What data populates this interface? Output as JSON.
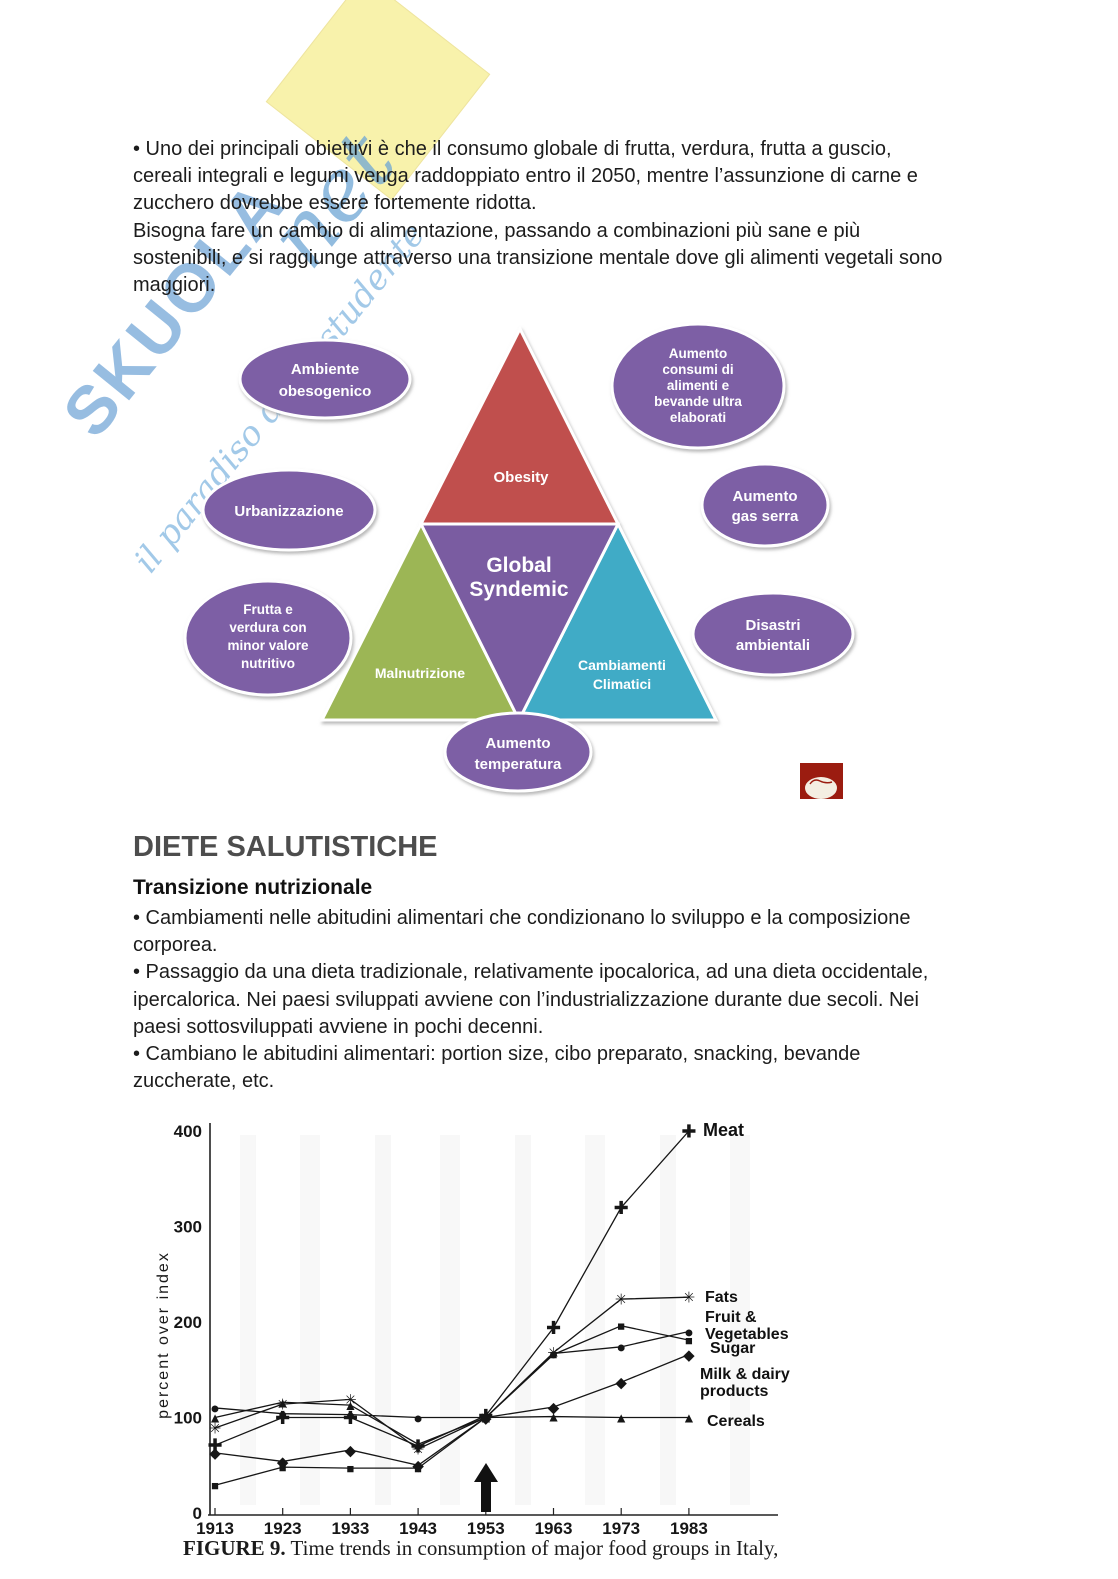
{
  "page": {
    "intro_lines": [
      "• Uno dei principali obiettivi è che il consumo globale di frutta, verdura, frutta a guscio,",
      "cereali integrali e legumi venga raddoppiato entro il 2050, mentre l’assunzione di carne e",
      "zucchero dovrebbe essere fortemente ridotta.",
      "Bisogna fare un cambio di alimentazione, passando a combinazioni più sane e più",
      "sostenibili, e si raggiunge attraverso una transizione mentale dove gli alimenti vegetali sono",
      "maggiori."
    ],
    "section": {
      "heading": "DIETE SALUTISTICHE",
      "subheading": "Transizione nutrizionale",
      "body_lines": [
        "• Cambiamenti nelle abitudini alimentari che condizionano lo sviluppo e la composizione",
        "corporea.",
        "• Passaggio da una dieta tradizionale, relativamente ipocalorica, ad una dieta occidentale,",
        "ipercalorica. Nei paesi sviluppati avviene con l’industrializzazione durante due secoli. Nei",
        "paesi sottosviluppati avviene in pochi decenni.",
        "• Cambiano le abitudini alimentari: portion size, cibo preparato, snacking, bevande",
        "zuccherate, etc."
      ]
    },
    "figure_caption": {
      "prefix": "FIGURE 9.",
      "text": " Time trends in consumption of major food groups in Italy,"
    }
  },
  "watermark": {
    "brand": "SKUOLA",
    "suffix": "net",
    "tagline": "il paradiso dello studente"
  },
  "diagram": {
    "triangle": {
      "top": {
        "label": "Obesity",
        "color": "#c0504d"
      },
      "center": {
        "lines": [
          "Global",
          "Syndemic"
        ],
        "color": "#7a5ba1"
      },
      "left": {
        "label": "Malnutrizione",
        "color": "#9cb654"
      },
      "right": {
        "lines": [
          "Cambiamenti",
          "Climatici"
        ],
        "color": "#3fabc6"
      }
    },
    "ellipse_color": "#7d5fa5",
    "ellipses": {
      "obesogenic": {
        "lines": [
          "Ambiente",
          "obesogenico"
        ]
      },
      "ultraprocessed": {
        "lines": [
          "Aumento",
          "consumi di",
          "alimenti e",
          "bevande ultra",
          "elaborati"
        ]
      },
      "urbanization": {
        "lines": [
          "Urbanizzazione"
        ]
      },
      "greenhouse": {
        "lines": [
          "Aumento",
          "gas serra"
        ]
      },
      "lower_fruit": {
        "lines": [
          "Frutta e",
          "verdura con",
          "minor valore",
          "nutritivo"
        ]
      },
      "disasters": {
        "lines": [
          "Disastri",
          "ambientali"
        ]
      },
      "temperature": {
        "lines": [
          "Aumento",
          "temperatura"
        ]
      }
    }
  },
  "chart_data": {
    "type": "line",
    "title": "",
    "xlabel": "",
    "ylabel": "percent over index",
    "x": [
      1913,
      1923,
      1933,
      1943,
      1953,
      1963,
      1973,
      1983
    ],
    "yticks": [
      0,
      100,
      200,
      300,
      400
    ],
    "ylim": [
      0,
      420
    ],
    "grid": false,
    "legend_position": "right-end-labels",
    "annotation": "upward arrow below x-axis at 1953",
    "series": [
      {
        "name": "Meat",
        "label_lines": [
          "Meat"
        ],
        "marker": "plus",
        "values": [
          71,
          100,
          100,
          70,
          102,
          194,
          320,
          400
        ]
      },
      {
        "name": "Fats",
        "label_lines": [
          "Fats"
        ],
        "marker": "star",
        "values": [
          89,
          114,
          119,
          67,
          100,
          168,
          224,
          226
        ]
      },
      {
        "name": "Fruit & Vegetables",
        "label_lines": [
          "Fruit &",
          "Vegetables"
        ],
        "marker": "circle",
        "values": [
          110,
          104,
          103,
          100,
          100,
          167,
          174,
          190
        ]
      },
      {
        "name": "Sugar",
        "label_lines": [
          "Sugar"
        ],
        "marker": "square",
        "values": [
          29,
          48,
          47,
          47,
          100,
          166,
          196,
          181
        ]
      },
      {
        "name": "Milk & dairy products",
        "label_lines": [
          "Milk & dairy",
          "products"
        ],
        "marker": "diamond",
        "values": [
          63,
          54,
          66,
          50,
          100,
          111,
          137,
          166
        ]
      },
      {
        "name": "Cereals",
        "label_lines": [
          "Cereals"
        ],
        "marker": "triangle",
        "values": [
          100,
          116,
          113,
          72,
          100,
          101,
          100,
          100
        ]
      }
    ]
  }
}
